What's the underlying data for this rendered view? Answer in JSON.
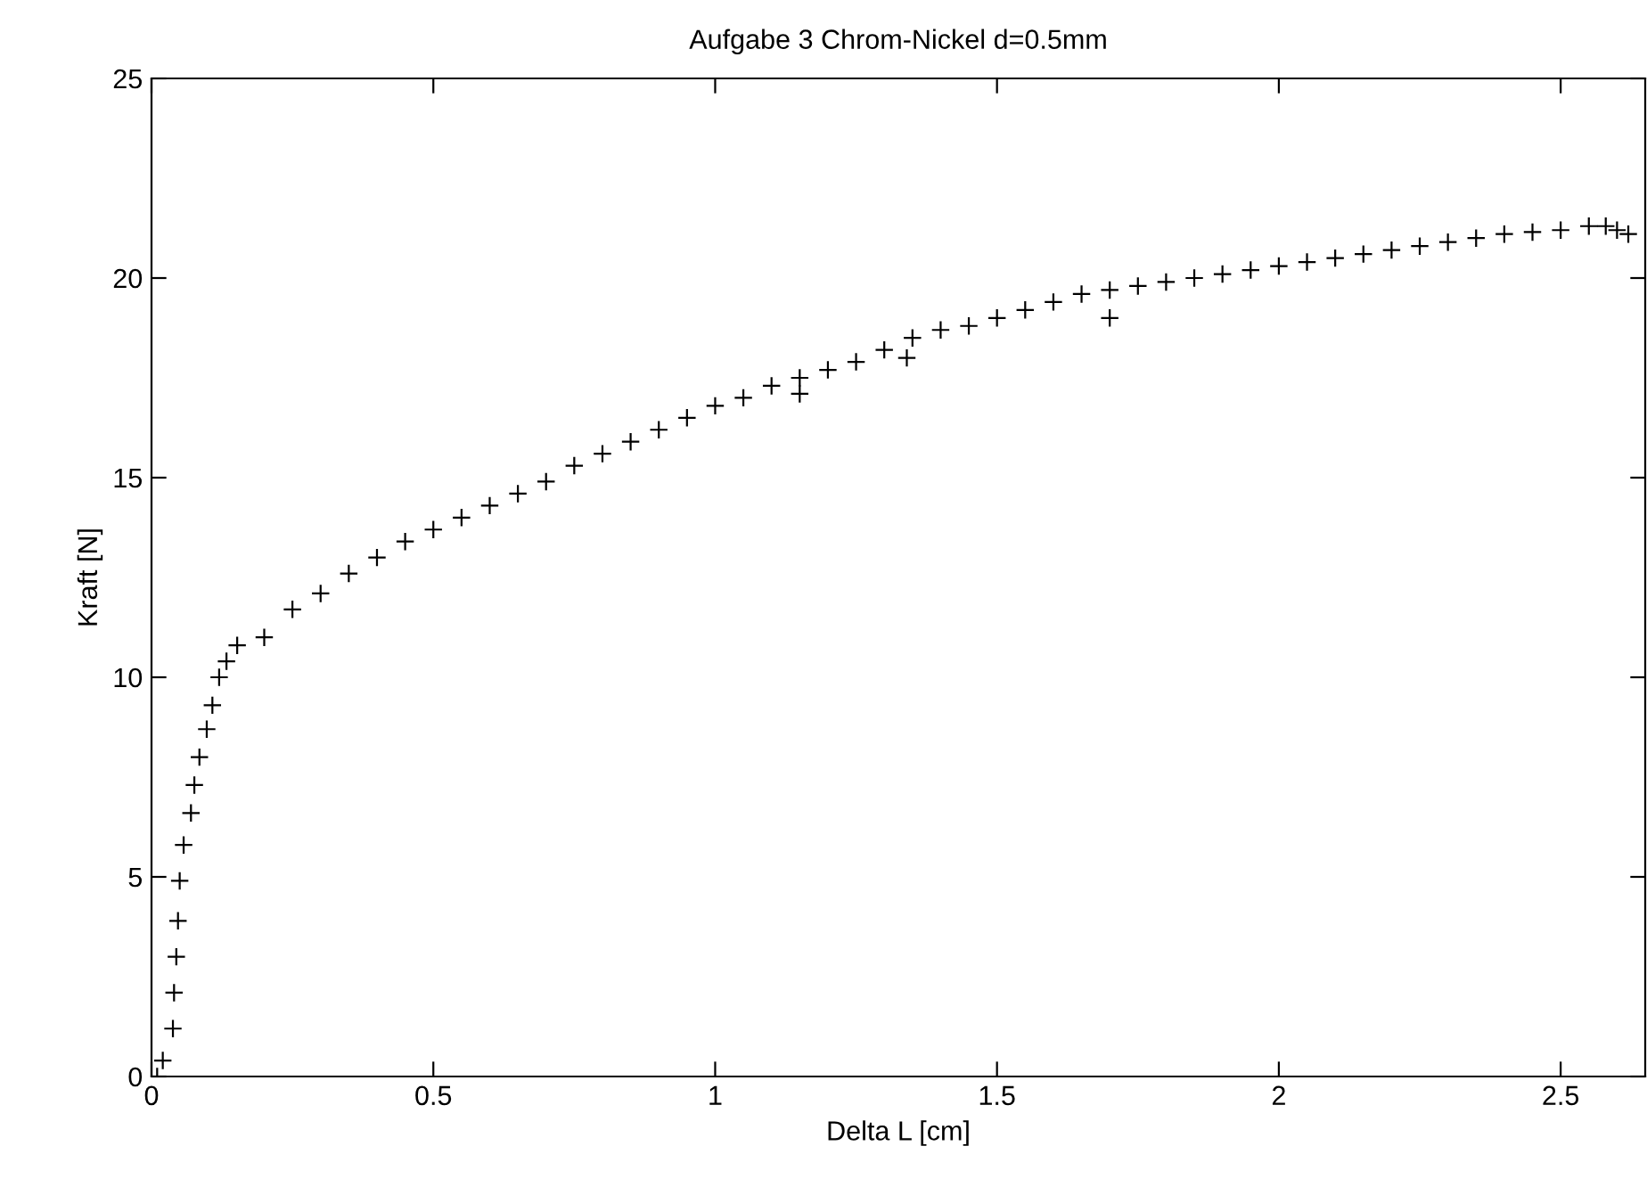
{
  "chart_data": {
    "type": "scatter",
    "title": "Aufgabe 3 Chrom-Nickel d=0.5mm",
    "xlabel": "Delta L [cm]",
    "ylabel": "Kraft [N]",
    "xlim": [
      0,
      2.65
    ],
    "ylim": [
      0,
      25
    ],
    "xticks": [
      0,
      0.5,
      1,
      1.5,
      2,
      2.5
    ],
    "yticks": [
      0,
      5,
      10,
      15,
      20,
      25
    ],
    "grid": false,
    "legend": false,
    "marker": "cross",
    "series": [
      {
        "color": "#000000",
        "x": [
          0.01,
          0.02,
          0.038,
          0.04,
          0.044,
          0.047,
          0.05,
          0.057,
          0.07,
          0.076,
          0.085,
          0.098,
          0.108,
          0.12,
          0.133,
          0.152,
          0.2,
          0.25,
          0.3,
          0.35,
          0.4,
          0.45,
          0.5,
          0.55,
          0.6,
          0.65,
          0.7,
          0.75,
          0.8,
          0.85,
          0.9,
          0.95,
          1.0,
          1.05,
          1.1,
          1.15,
          1.15,
          1.2,
          1.25,
          1.3,
          1.34,
          1.35,
          1.4,
          1.45,
          1.5,
          1.55,
          1.6,
          1.65,
          1.7,
          1.7,
          1.75,
          1.8,
          1.85,
          1.9,
          1.95,
          2.0,
          2.05,
          2.1,
          2.15,
          2.2,
          2.25,
          2.3,
          2.35,
          2.4,
          2.45,
          2.5,
          2.55,
          2.58,
          2.6,
          2.62
        ],
        "values": [
          0,
          0.4,
          1.2,
          2.1,
          3.0,
          3.9,
          4.9,
          5.8,
          6.6,
          7.3,
          8.0,
          8.7,
          9.3,
          10.0,
          10.4,
          10.8,
          11.0,
          11.7,
          12.1,
          12.6,
          13.0,
          13.4,
          13.7,
          14.0,
          14.3,
          14.6,
          14.9,
          15.3,
          15.6,
          15.9,
          16.2,
          16.5,
          16.8,
          17.0,
          17.3,
          17.1,
          17.5,
          17.7,
          17.9,
          18.2,
          18.0,
          18.5,
          18.7,
          18.8,
          19.0,
          19.2,
          19.4,
          19.6,
          19.7,
          19.0,
          19.8,
          19.9,
          20.0,
          20.1,
          20.2,
          20.3,
          20.4,
          20.5,
          20.6,
          20.7,
          20.8,
          20.9,
          21.0,
          21.1,
          21.15,
          21.2,
          21.3,
          21.3,
          21.2,
          21.1
        ]
      }
    ]
  }
}
